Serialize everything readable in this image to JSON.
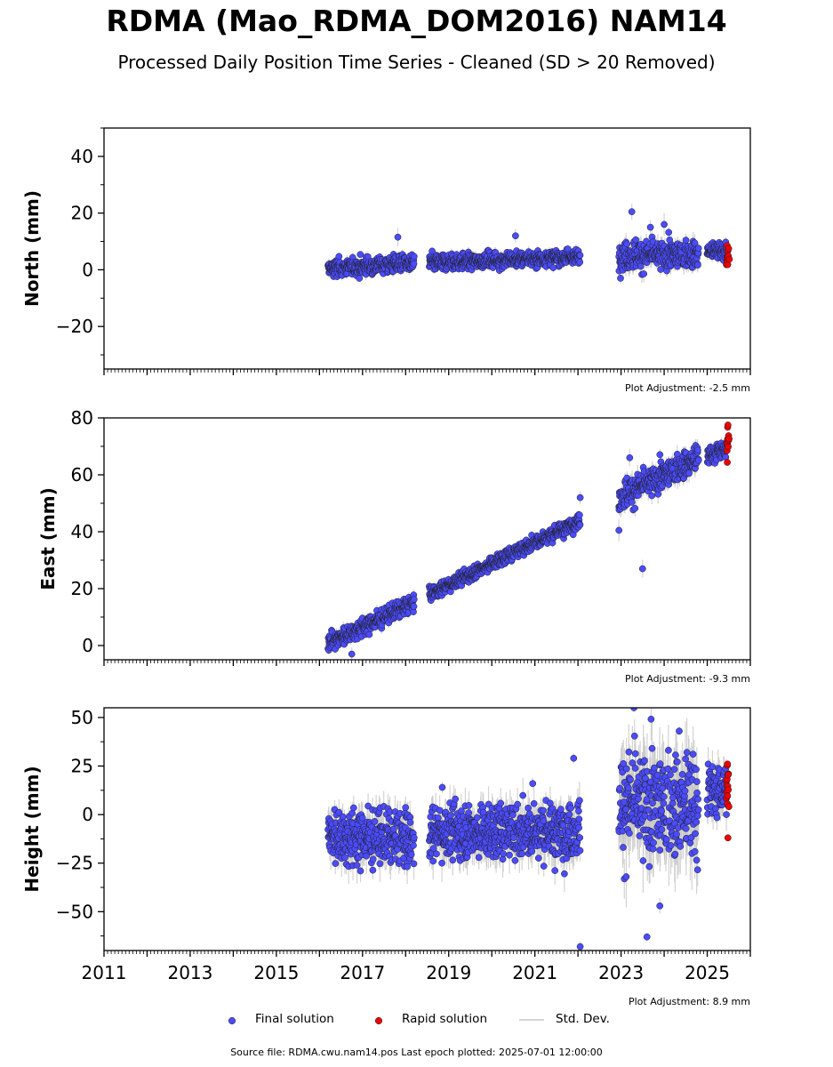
{
  "title": "RDMA (Mao_RDMA_DOM2016) NAM14",
  "subtitle": "Processed Daily Position Time Series - Cleaned (SD > 20 Removed)",
  "legend": {
    "final": "Final solution",
    "rapid": "Rapid solution",
    "std": "Std. Dev."
  },
  "footer": "Source file: RDMA.cwu.nam14.pos  Last epoch plotted: 2025-07-01 12:00:00",
  "colors": {
    "final": "#4b4bff",
    "rapid": "#ee0000",
    "std": "#c8c8c8"
  },
  "chart_data": [
    {
      "type": "scatter",
      "ylabel": "North (mm)",
      "ylim": [
        -35,
        50
      ],
      "yticks": [
        40,
        20,
        0,
        -20
      ],
      "yticklabels": [
        "40",
        "20",
        "0",
        "−20"
      ],
      "xlim": [
        2011,
        2026
      ],
      "adjustment": "Plot Adjustment: -2.5 mm",
      "series": [
        {
          "name": "Final solution",
          "segments": [
            {
              "x0": 2016.2,
              "x1": 2018.2,
              "y0": 0.5,
              "y1": 2.5,
              "noise": 1.5
            },
            {
              "x0": 2018.55,
              "x1": 2022.05,
              "y0": 2.5,
              "y1": 4.5,
              "noise": 1.4
            },
            {
              "x0": 2022.95,
              "x1": 2024.8,
              "y0": 5.0,
              "y1": 5.5,
              "noise": 2.5
            },
            {
              "x0": 2025.0,
              "x1": 2025.45,
              "y0": 6.5,
              "y1": 7.0,
              "noise": 1.5
            }
          ],
          "outliers": [
            [
              2017.82,
              11.5
            ],
            [
              2020.55,
              12
            ],
            [
              2023.25,
              20.5
            ],
            [
              2023.68,
              15
            ],
            [
              2024.0,
              16
            ]
          ]
        },
        {
          "name": "Rapid solution",
          "segments": [
            {
              "x0": 2025.45,
              "x1": 2025.5,
              "y0": 5.0,
              "y1": 6.0,
              "noise": 2.2
            }
          ],
          "outliers": []
        }
      ]
    },
    {
      "type": "scatter",
      "ylabel": "East (mm)",
      "ylim": [
        -5,
        80
      ],
      "yticks": [
        80,
        60,
        40,
        20,
        0
      ],
      "yticklabels": [
        "80",
        "60",
        "40",
        "20",
        "0"
      ],
      "xlim": [
        2011,
        2026
      ],
      "adjustment": "Plot Adjustment: -9.3 mm",
      "series": [
        {
          "name": "Final solution",
          "segments": [
            {
              "x0": 2016.2,
              "x1": 2018.2,
              "y0": 1,
              "y1": 15,
              "noise": 1.5
            },
            {
              "x0": 2018.55,
              "x1": 2022.05,
              "y0": 18,
              "y1": 44,
              "noise": 1.2
            },
            {
              "x0": 2022.95,
              "x1": 2024.8,
              "y0": 52,
              "y1": 66,
              "noise": 2.5
            },
            {
              "x0": 2025.0,
              "x1": 2025.45,
              "y0": 66.5,
              "y1": 69.5,
              "noise": 1.5
            }
          ],
          "outliers": [
            [
              2016.75,
              -3
            ],
            [
              2022.05,
              52
            ],
            [
              2022.95,
              40.5
            ],
            [
              2023.5,
              27
            ],
            [
              2023.2,
              66
            ]
          ]
        },
        {
          "name": "Rapid solution",
          "segments": [
            {
              "x0": 2025.45,
              "x1": 2025.5,
              "y0": 70,
              "y1": 72,
              "noise": 3
            }
          ],
          "outliers": [
            [
              2025.48,
              77.5
            ]
          ]
        }
      ]
    },
    {
      "type": "scatter",
      "ylabel": "Height (mm)",
      "ylim": [
        -70,
        55
      ],
      "yticks": [
        50,
        25,
        0,
        -25,
        -50
      ],
      "yticklabels": [
        "50",
        "25",
        "0",
        "−25",
        "−50"
      ],
      "xlim": [
        2011,
        2026
      ],
      "xticks": [
        2011,
        2013,
        2015,
        2017,
        2019,
        2021,
        2023,
        2025
      ],
      "xticklabels": [
        "2011",
        "2013",
        "2015",
        "2017",
        "2019",
        "2021",
        "2023",
        "2025"
      ],
      "adjustment": "Plot Adjustment: 8.9 mm",
      "series": [
        {
          "name": "Final solution",
          "segments": [
            {
              "x0": 2016.2,
              "x1": 2018.2,
              "y0": -10,
              "y1": -13,
              "noise": 7
            },
            {
              "x0": 2018.55,
              "x1": 2022.05,
              "y0": -9,
              "y1": -8,
              "noise": 7
            },
            {
              "x0": 2022.95,
              "x1": 2024.8,
              "y0": 5,
              "y1": 5,
              "noise": 14
            },
            {
              "x0": 2025.0,
              "x1": 2025.45,
              "y0": 13,
              "y1": 13,
              "noise": 7
            }
          ],
          "outliers": [
            [
              2022.05,
              -68
            ],
            [
              2023.6,
              -63
            ],
            [
              2023.9,
              -47
            ],
            [
              2021.9,
              29
            ],
            [
              2023.3,
              55
            ],
            [
              2024.35,
              43
            ],
            [
              2018.85,
              14
            ],
            [
              2020.95,
              16
            ]
          ]
        },
        {
          "name": "Rapid solution",
          "segments": [
            {
              "x0": 2025.45,
              "x1": 2025.5,
              "y0": 14,
              "y1": 14,
              "noise": 6
            }
          ],
          "outliers": [
            [
              2025.48,
              -12
            ],
            [
              2025.47,
              26
            ]
          ]
        }
      ]
    }
  ]
}
